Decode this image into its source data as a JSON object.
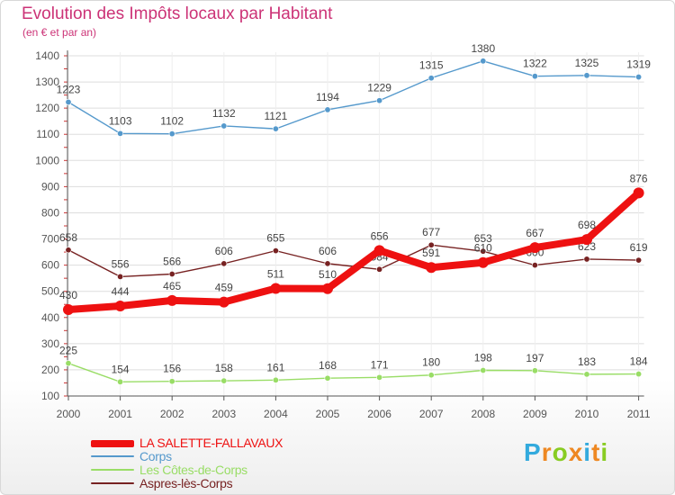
{
  "header": {
    "title": "Evolution des Impôts locaux par Habitant",
    "subtitle": "(en € et par an)"
  },
  "colors": {
    "title": "#cc3377",
    "axis": "#555555",
    "grid": "#dddddd",
    "label": "#444444"
  },
  "chart_data": {
    "type": "line",
    "title": "Evolution des Impôts locaux par Habitant",
    "ylabel": "(en € et par an)",
    "xlabel": "",
    "ylim": [
      100,
      1400
    ],
    "yticks": [
      "100",
      "200",
      "300",
      "400",
      "500",
      "600",
      "700",
      "800",
      "900",
      "1000",
      "1100",
      "1200",
      "1300",
      "1400"
    ],
    "categories": [
      "2000",
      "2001",
      "2002",
      "2003",
      "2004",
      "2005",
      "2006",
      "2007",
      "2008",
      "2009",
      "2010",
      "2011"
    ],
    "legend_position": "bottom-left",
    "series": [
      {
        "name": "Corps",
        "color": "#5599cc",
        "values": [
          1223,
          1103,
          1102,
          1132,
          1121,
          1194,
          1229,
          1315,
          1380,
          1322,
          1325,
          1319
        ],
        "labels": [
          "1223",
          "1103",
          "1102",
          "1132",
          "1121",
          "1194",
          "1229",
          "1315",
          "1380",
          "1322",
          "1325",
          "1319"
        ]
      },
      {
        "name": "Les Côtes-de-Corps",
        "color": "#99dd66",
        "values": [
          225,
          154,
          156,
          158,
          161,
          168,
          171,
          180,
          198,
          197,
          183,
          184
        ],
        "labels": [
          "225",
          "154",
          "156",
          "158",
          "161",
          "168",
          "171",
          "180",
          "198",
          "197",
          "183",
          "184"
        ]
      },
      {
        "name": "Aspres-lès-Corps",
        "color": "#772222",
        "values": [
          658,
          556,
          566,
          606,
          655,
          606,
          584,
          677,
          653,
          600,
          623,
          619
        ],
        "labels": [
          "658",
          "556",
          "566",
          "606",
          "655",
          "606",
          "584",
          "677",
          "653",
          "600",
          "623",
          "619"
        ]
      },
      {
        "name": "LA SALETTE-FALLAVAUX",
        "color": "#ee1111",
        "values": [
          430,
          444,
          465,
          459,
          511,
          510,
          656,
          591,
          610,
          667,
          698,
          876
        ],
        "labels": [
          "430",
          "444",
          "465",
          "459",
          "511",
          "510",
          "656",
          "591",
          "610",
          "667",
          "698",
          "876"
        ]
      }
    ]
  },
  "legend": [
    {
      "name": "LA SALETTE-FALLAVAUX",
      "color": "#ee1111"
    },
    {
      "name": "Corps",
      "color": "#5599cc"
    },
    {
      "name": "Les Côtes-de-Corps",
      "color": "#99dd66"
    },
    {
      "name": "Aspres-lès-Corps",
      "color": "#772222"
    }
  ],
  "logo": {
    "letters": [
      "P",
      "r",
      "o",
      "x",
      "i",
      "t",
      "i"
    ],
    "colors": [
      "#33aadd",
      "#ee8822",
      "#88cc22",
      "#ee8822",
      "#33aadd",
      "#ee8822",
      "#88cc22"
    ]
  }
}
